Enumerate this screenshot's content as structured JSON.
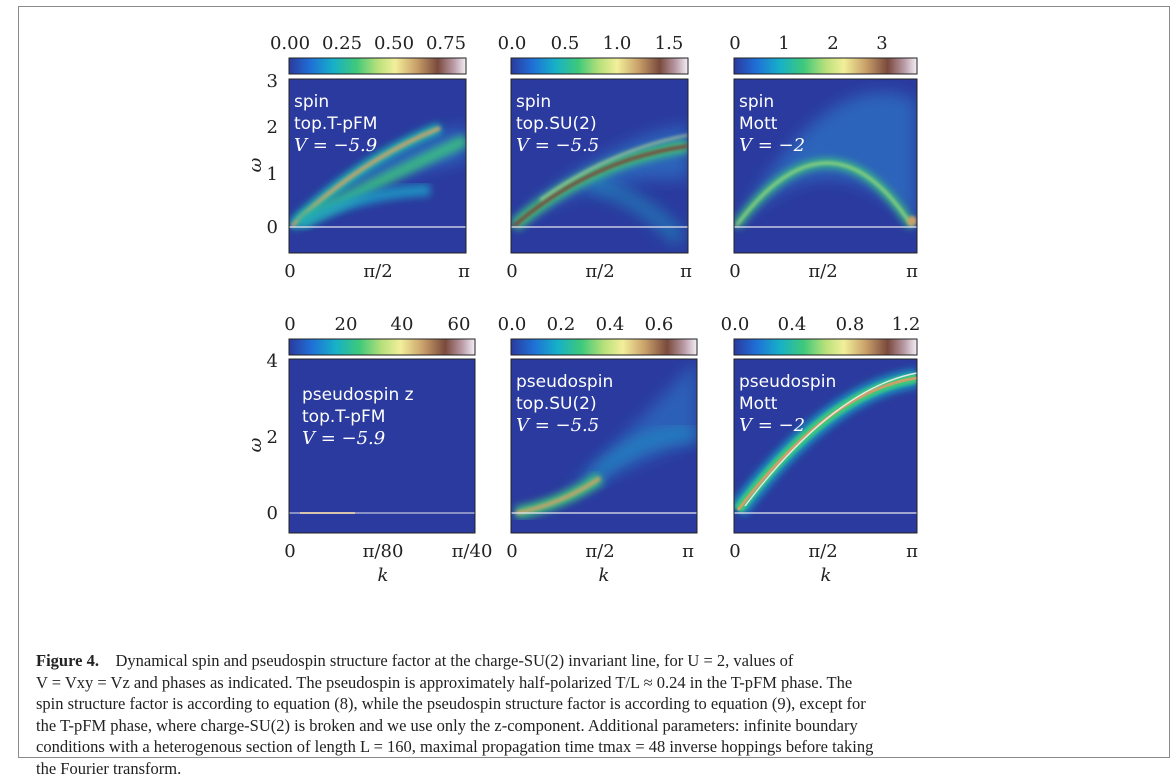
{
  "figure": {
    "panels": [
      {
        "label": "spin",
        "phase": "top.T-pFM",
        "param": "V = −5.9",
        "xticks": [
          "0",
          "π/2",
          "π"
        ],
        "cticks": [
          "0.00",
          "0.25",
          "0.50",
          "0.75"
        ],
        "yticks": [
          "0",
          "1",
          "2",
          "3"
        ],
        "variant": "spin-tpfm"
      },
      {
        "label": "spin",
        "phase": "top.SU(2)",
        "param": "V = −5.5",
        "xticks": [
          "0",
          "π/2",
          "π"
        ],
        "cticks": [
          "0.0",
          "0.5",
          "1.0",
          "1.5"
        ],
        "yticks": [],
        "variant": "spin-su2"
      },
      {
        "label": "spin",
        "phase": "Mott",
        "param": "V = −2",
        "xticks": [
          "0",
          "π/2",
          "π"
        ],
        "cticks": [
          "0",
          "1",
          "2",
          "3"
        ],
        "yticks": [],
        "variant": "spin-mott"
      },
      {
        "label": "pseudospin z",
        "phase": "top.T-pFM",
        "param": "V = −5.9",
        "xticks": [
          "0",
          "π/80",
          "π/40"
        ],
        "cticks": [
          "0",
          "20",
          "40",
          "60"
        ],
        "yticks": [
          "0",
          "2",
          "4"
        ],
        "variant": "ps-tpfm"
      },
      {
        "label": "pseudospin",
        "phase": "top.SU(2)",
        "param": "V = −5.5",
        "xticks": [
          "0",
          "π/2",
          "π"
        ],
        "cticks": [
          "0.0",
          "0.2",
          "0.4",
          "0.6"
        ],
        "yticks": [],
        "variant": "ps-su2"
      },
      {
        "label": "pseudospin",
        "phase": "Mott",
        "param": "V = −2",
        "xticks": [
          "0",
          "π/2",
          "π"
        ],
        "cticks": [
          "0.0",
          "0.4",
          "0.8",
          "1.2"
        ],
        "yticks": [],
        "variant": "ps-mott"
      }
    ],
    "ylabel": "ω",
    "xlabel": "k",
    "colors": {
      "background": "#2b3a9e",
      "baseline": "#e8e8f0"
    }
  },
  "caption": {
    "title": "Figure 4.",
    "line1": "Dynamical spin and pseudospin structure factor at the charge-SU(2) invariant line, for U = 2, values of",
    "line2": "V = Vxy = Vz and phases as indicated. The pseudospin is approximately half-polarized T/L ≈ 0.24 in the T-pFM phase. The",
    "line3": "spin structure factor is according to equation (8), while the pseudospin structure factor is according to equation (9), except for",
    "line4": "the T-pFM phase, where charge-SU(2) is broken and we use only the z-component. Additional parameters: infinite boundary",
    "line5": "conditions with a heterogenous section of length L = 160, maximal propagation time tmax = 48 inverse hoppings before taking",
    "line6": "the Fourier transform."
  }
}
